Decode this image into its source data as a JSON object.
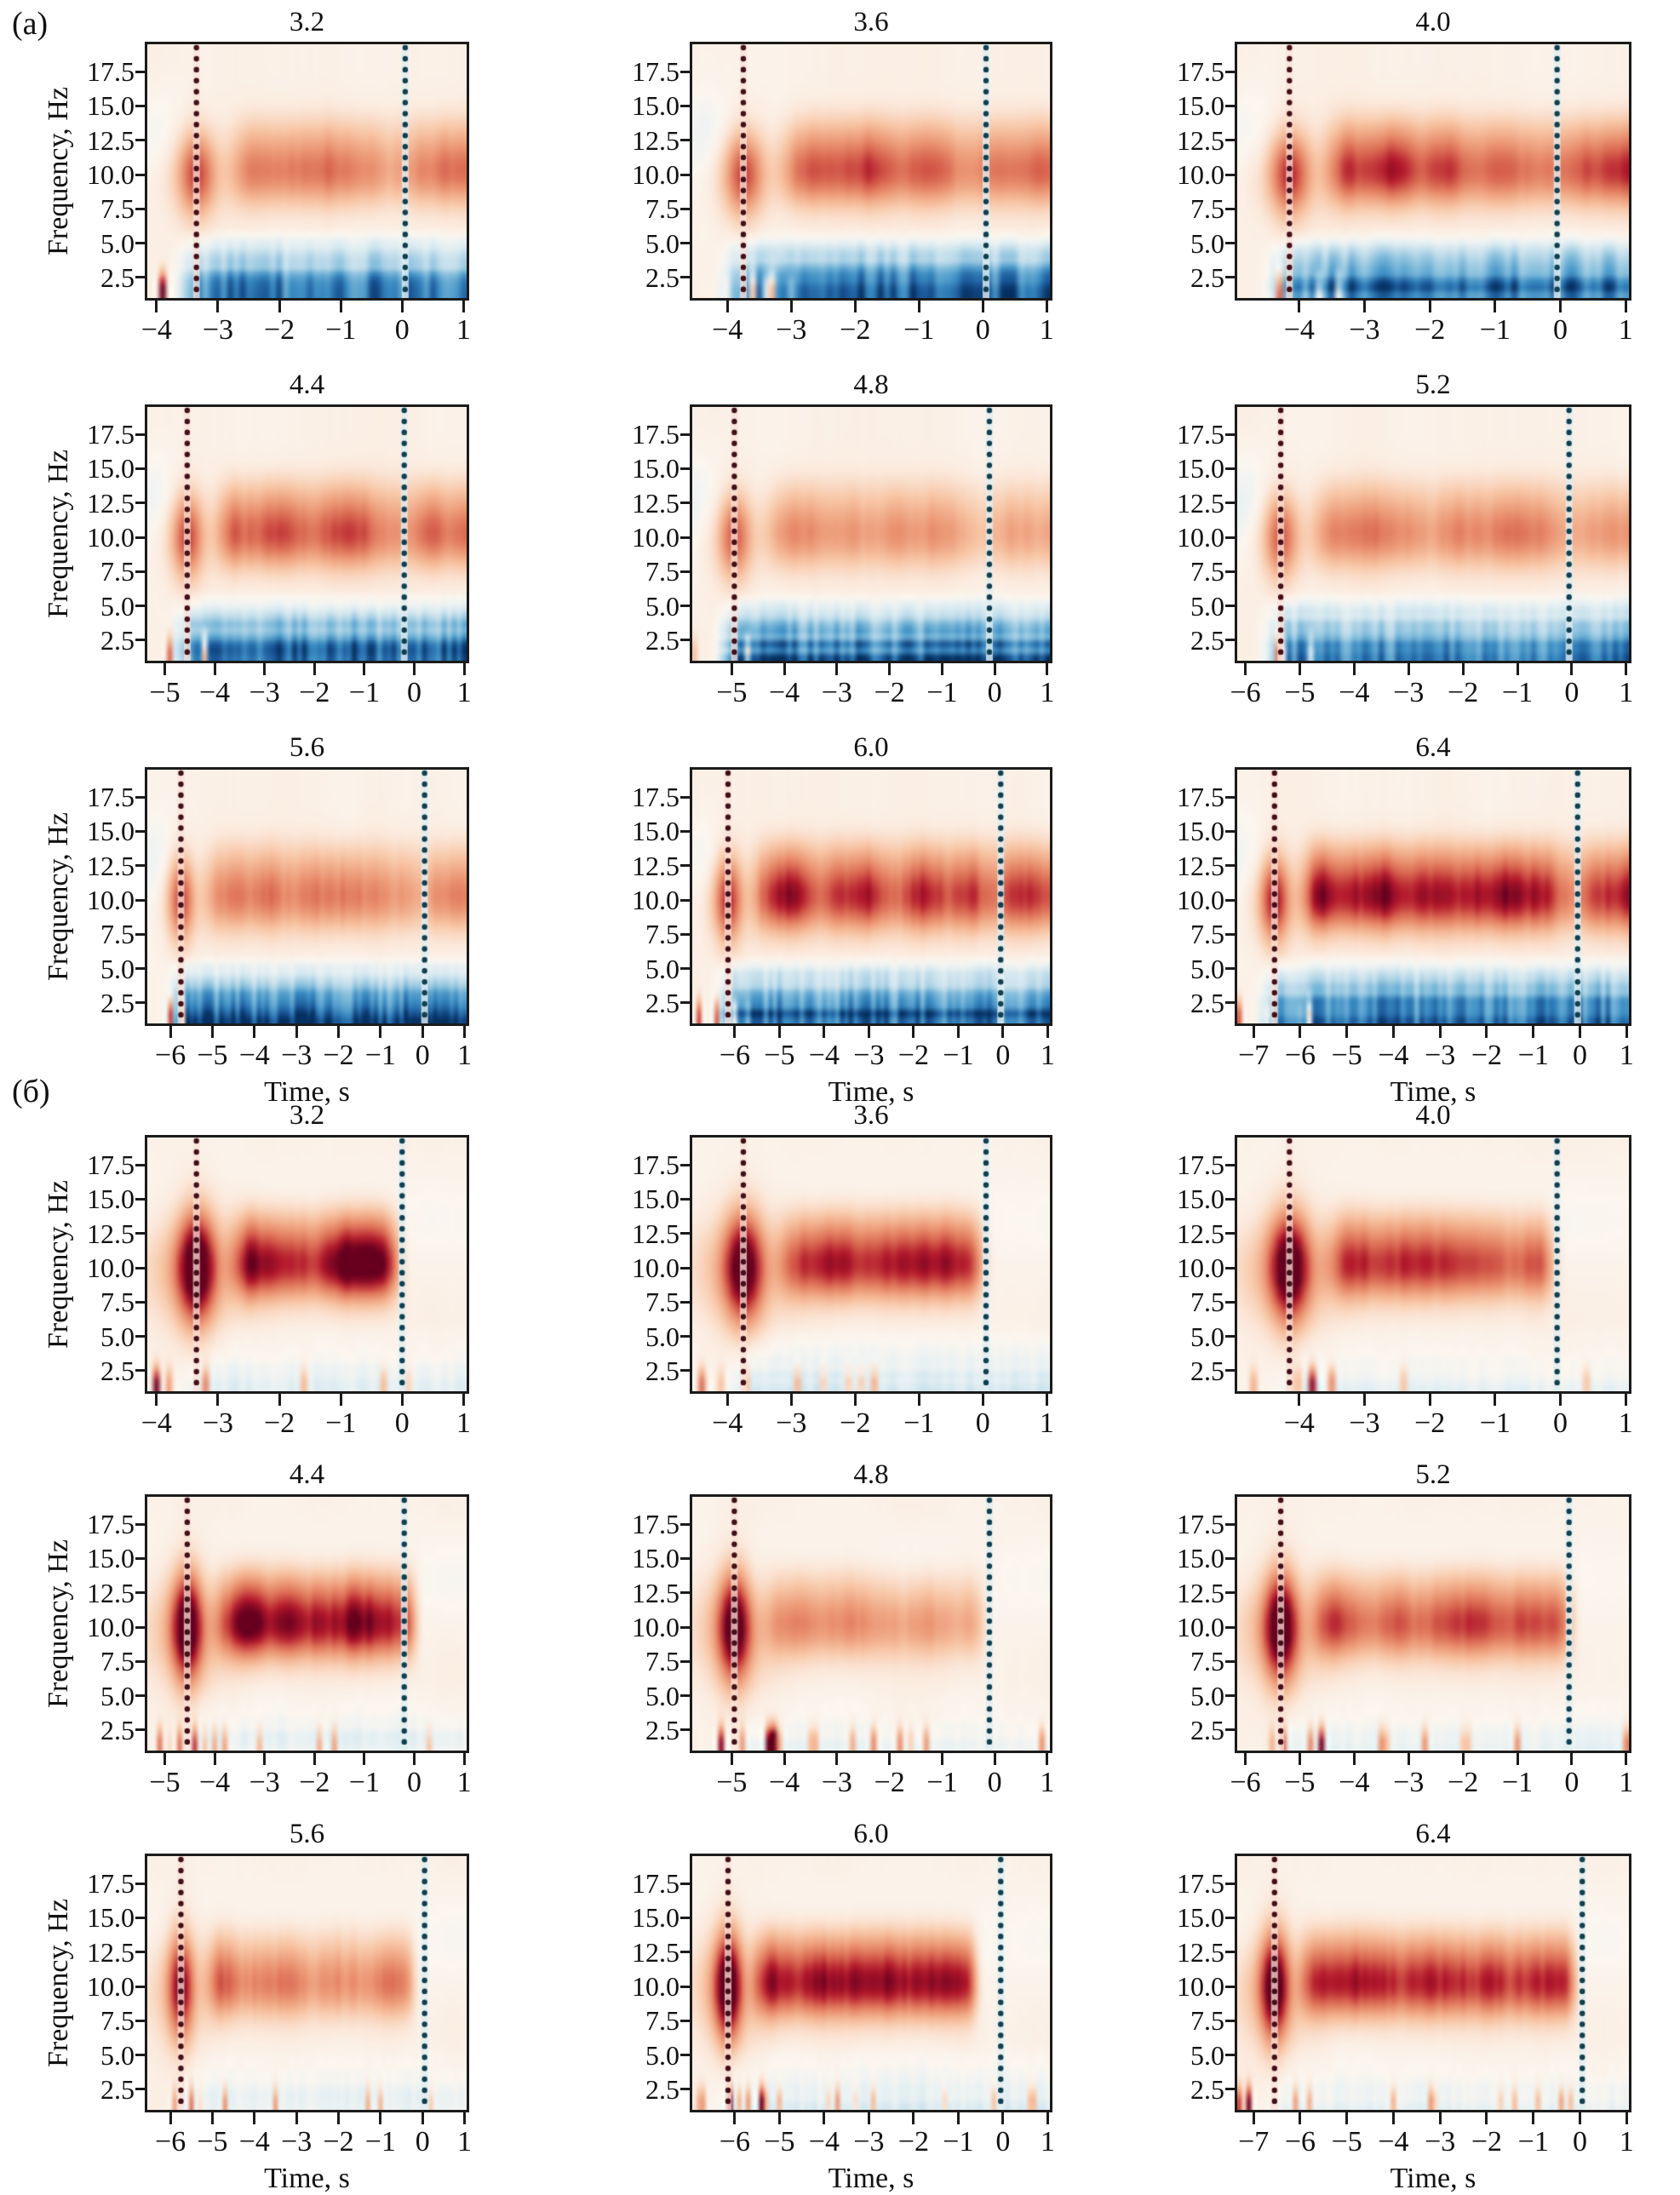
{
  "axes": {
    "ylabel": "Frequency, Hz",
    "xlabel": "Time, s",
    "ytick_labels": [
      "17.5",
      "15.0",
      "12.5",
      "10.0",
      "7.5",
      "5.0",
      "2.5"
    ],
    "ytick_values": [
      17.5,
      15.0,
      12.5,
      10.0,
      7.5,
      5.0,
      2.5
    ],
    "freq_range": [
      1.0,
      19.5
    ]
  },
  "colors": {
    "background": "#ffffff",
    "box_border": "#1b1b1b",
    "tick": "#1b1b1b",
    "stimulus_line_dot": "#431019",
    "stimulus_line_halo": "rgba(250,224,216,0.75)",
    "response_line_dot": "#114050",
    "response_line_halo": "rgba(224,238,241,0.8)",
    "colormap_stops": [
      [
        -1.0,
        "#053061"
      ],
      [
        -0.8,
        "#1b5899"
      ],
      [
        -0.6,
        "#3a8bc2"
      ],
      [
        -0.4,
        "#7ab8d9"
      ],
      [
        -0.2,
        "#c7e0ec"
      ],
      [
        -0.07,
        "#e8f1f3"
      ],
      [
        0.0,
        "#fbf6ef"
      ],
      [
        0.08,
        "#fbe9dc"
      ],
      [
        0.25,
        "#f7c4a3"
      ],
      [
        0.45,
        "#ea9270"
      ],
      [
        0.62,
        "#d6604d"
      ],
      [
        0.8,
        "#b2182b"
      ],
      [
        1.0,
        "#67001f"
      ]
    ]
  },
  "chart_data": {
    "type": "heatmap",
    "description": "Event-related spectral perturbation maps (red = power increase, blue = decrease) vs time and frequency; dark-red dotted line = stimulus onset, dark-teal dotted line = response near 0 s; subplot titles give delay duration in seconds",
    "panels": [
      {
        "label": "(a)",
        "key": "a",
        "subplots": [
          {
            "title": "3.2",
            "row": 0,
            "col": 0,
            "x_min": -4.15,
            "x_max": 1.05,
            "xtick_values": [
              -4,
              -3,
              -2,
              -1,
              0,
              1
            ],
            "xtick_labels": [
              "−4",
              "−3",
              "−2",
              "−1",
              "0",
              "1"
            ],
            "red_line": -3.35,
            "blue_line": 0.05,
            "heat": {
              "alpha_amp": 0.5,
              "onset_amp": 0.5,
              "low_blue_amp": 0.8,
              "band_end": null,
              "dip": 0.3
            }
          },
          {
            "title": "3.6",
            "row": 0,
            "col": 1,
            "x_min": -4.55,
            "x_max": 1.05,
            "xtick_values": [
              -4,
              -3,
              -2,
              -1,
              0,
              1
            ],
            "xtick_labels": [
              "−4",
              "−3",
              "−2",
              "−1",
              "0",
              "1"
            ],
            "red_line": -3.75,
            "blue_line": 0.05,
            "heat": {
              "alpha_amp": 0.62,
              "onset_amp": 0.5,
              "low_blue_amp": 0.95,
              "band_end": null,
              "dip": 0.3
            }
          },
          {
            "title": "4.0",
            "row": 0,
            "col": 2,
            "x_min": -4.95,
            "x_max": 1.05,
            "xtick_values": [
              -4,
              -3,
              -2,
              -1,
              0,
              1
            ],
            "xtick_labels": [
              "−4",
              "−3",
              "−2",
              "−1",
              "0",
              "1"
            ],
            "red_line": -4.15,
            "blue_line": -0.05,
            "heat": {
              "alpha_amp": 0.72,
              "onset_amp": 0.55,
              "low_blue_amp": 0.9,
              "band_end": null,
              "dip": 0.25
            }
          },
          {
            "title": "4.4",
            "row": 1,
            "col": 0,
            "x_min": -5.35,
            "x_max": 1.05,
            "xtick_values": [
              -5,
              -4,
              -3,
              -2,
              -1,
              0,
              1
            ],
            "xtick_labels": [
              "−5",
              "−4",
              "−3",
              "−2",
              "−1",
              "0",
              "1"
            ],
            "red_line": -4.55,
            "blue_line": -0.2,
            "heat": {
              "alpha_amp": 0.6,
              "onset_amp": 0.5,
              "low_blue_amp": 0.95,
              "band_end": null,
              "dip": 0.3
            }
          },
          {
            "title": "4.8",
            "row": 1,
            "col": 1,
            "x_min": -5.75,
            "x_max": 1.05,
            "xtick_values": [
              -5,
              -4,
              -3,
              -2,
              -1,
              0,
              1
            ],
            "xtick_labels": [
              "−5",
              "−4",
              "−3",
              "−2",
              "−1",
              "0",
              "1"
            ],
            "red_line": -4.95,
            "blue_line": -0.1,
            "heat": {
              "alpha_amp": 0.4,
              "onset_amp": 0.45,
              "low_blue_amp": 0.9,
              "band_end": null,
              "dip": 0.3
            }
          },
          {
            "title": "5.2",
            "row": 1,
            "col": 2,
            "x_min": -6.15,
            "x_max": 1.05,
            "xtick_values": [
              -6,
              -5,
              -4,
              -3,
              -2,
              -1,
              0,
              1
            ],
            "xtick_labels": [
              "−6",
              "−5",
              "−4",
              "−3",
              "−2",
              "−1",
              "0",
              "1"
            ],
            "red_line": -5.35,
            "blue_line": -0.05,
            "heat": {
              "alpha_amp": 0.46,
              "onset_amp": 0.45,
              "low_blue_amp": 0.85,
              "band_end": null,
              "dip": 0.3
            }
          },
          {
            "title": "5.6",
            "row": 2,
            "col": 0,
            "x_min": -6.55,
            "x_max": 1.05,
            "xtick_values": [
              -6,
              -5,
              -4,
              -3,
              -2,
              -1,
              0,
              1
            ],
            "xtick_labels": [
              "−6",
              "−5",
              "−4",
              "−3",
              "−2",
              "−1",
              "0",
              "1"
            ],
            "red_line": -5.75,
            "blue_line": 0.05,
            "heat": {
              "alpha_amp": 0.5,
              "onset_amp": 0.5,
              "low_blue_amp": 0.9,
              "band_end": null,
              "dip": 0.3
            }
          },
          {
            "title": "6.0",
            "row": 2,
            "col": 1,
            "x_min": -6.95,
            "x_max": 1.05,
            "xtick_values": [
              -6,
              -5,
              -4,
              -3,
              -2,
              -1,
              0,
              1
            ],
            "xtick_labels": [
              "−6",
              "−5",
              "−4",
              "−3",
              "−2",
              "−1",
              "0",
              "1"
            ],
            "red_line": -6.15,
            "blue_line": -0.05,
            "heat": {
              "alpha_amp": 0.75,
              "onset_amp": 0.55,
              "low_blue_amp": 0.95,
              "band_end": null,
              "dip": 0.3
            }
          },
          {
            "title": "6.4",
            "row": 2,
            "col": 2,
            "x_min": -7.35,
            "x_max": 1.05,
            "xtick_values": [
              -7,
              -6,
              -5,
              -4,
              -3,
              -2,
              -1,
              0,
              1
            ],
            "xtick_labels": [
              "−7",
              "−6",
              "−5",
              "−4",
              "−3",
              "−2",
              "−1",
              "0",
              "1"
            ],
            "red_line": -6.55,
            "blue_line": -0.05,
            "heat": {
              "alpha_amp": 0.8,
              "onset_amp": 0.6,
              "low_blue_amp": 0.95,
              "band_end": null,
              "dip": 0.3
            }
          }
        ]
      },
      {
        "label": "(б)",
        "key": "b",
        "subplots": [
          {
            "title": "3.2",
            "row": 0,
            "col": 0,
            "x_min": -4.15,
            "x_max": 1.05,
            "xtick_values": [
              -4,
              -3,
              -2,
              -1,
              0,
              1
            ],
            "xtick_labels": [
              "−4",
              "−3",
              "−2",
              "−1",
              "0",
              "1"
            ],
            "red_line": -3.35,
            "blue_line": 0.0,
            "heat": {
              "alpha_amp": 0.95,
              "onset_amp": 1.0,
              "low_blue_amp": 0.12,
              "band_end": -0.35,
              "dip": 0
            }
          },
          {
            "title": "3.6",
            "row": 0,
            "col": 1,
            "x_min": -4.55,
            "x_max": 1.05,
            "xtick_values": [
              -4,
              -3,
              -2,
              -1,
              0,
              1
            ],
            "xtick_labels": [
              "−4",
              "−3",
              "−2",
              "−1",
              "0",
              "1"
            ],
            "red_line": -3.75,
            "blue_line": 0.05,
            "heat": {
              "alpha_amp": 0.8,
              "onset_amp": 0.9,
              "low_blue_amp": 0.18,
              "band_end": -0.3,
              "dip": 0
            }
          },
          {
            "title": "4.0",
            "row": 0,
            "col": 2,
            "x_min": -4.95,
            "x_max": 1.05,
            "xtick_values": [
              -4,
              -3,
              -2,
              -1,
              0,
              1
            ],
            "xtick_labels": [
              "−4",
              "−3",
              "−2",
              "−1",
              "0",
              "1"
            ],
            "red_line": -4.15,
            "blue_line": -0.05,
            "heat": {
              "alpha_amp": 0.72,
              "onset_amp": 0.95,
              "low_blue_amp": 0.1,
              "band_end": -0.4,
              "dip": 0
            }
          },
          {
            "title": "4.4",
            "row": 1,
            "col": 0,
            "x_min": -5.35,
            "x_max": 1.05,
            "xtick_values": [
              -5,
              -4,
              -3,
              -2,
              -1,
              0,
              1
            ],
            "xtick_labels": [
              "−5",
              "−4",
              "−3",
              "−2",
              "−1",
              "0",
              "1"
            ],
            "red_line": -4.55,
            "blue_line": -0.2,
            "heat": {
              "alpha_amp": 1.0,
              "onset_amp": 0.95,
              "low_blue_amp": 0.12,
              "band_end": -0.3,
              "dip": 0
            }
          },
          {
            "title": "4.8",
            "row": 1,
            "col": 1,
            "x_min": -5.75,
            "x_max": 1.05,
            "xtick_values": [
              -5,
              -4,
              -3,
              -2,
              -1,
              0,
              1
            ],
            "xtick_labels": [
              "−5",
              "−4",
              "−3",
              "−2",
              "−1",
              "0",
              "1"
            ],
            "red_line": -4.95,
            "blue_line": -0.1,
            "heat": {
              "alpha_amp": 0.45,
              "onset_amp": 0.9,
              "low_blue_amp": 0.08,
              "band_end": -0.5,
              "dip": 0
            }
          },
          {
            "title": "5.2",
            "row": 1,
            "col": 2,
            "x_min": -6.15,
            "x_max": 1.05,
            "xtick_values": [
              -6,
              -5,
              -4,
              -3,
              -2,
              -1,
              0,
              1
            ],
            "xtick_labels": [
              "−6",
              "−5",
              "−4",
              "−3",
              "−2",
              "−1",
              "0",
              "1"
            ],
            "red_line": -5.35,
            "blue_line": -0.05,
            "heat": {
              "alpha_amp": 0.65,
              "onset_amp": 0.95,
              "low_blue_amp": 0.1,
              "band_end": -0.3,
              "dip": 0
            }
          },
          {
            "title": "5.6",
            "row": 2,
            "col": 0,
            "x_min": -6.55,
            "x_max": 1.05,
            "xtick_values": [
              -6,
              -5,
              -4,
              -3,
              -2,
              -1,
              0,
              1
            ],
            "xtick_labels": [
              "−6",
              "−5",
              "−4",
              "−3",
              "−2",
              "−1",
              "0",
              "1"
            ],
            "red_line": -5.75,
            "blue_line": 0.05,
            "heat": {
              "alpha_amp": 0.5,
              "onset_amp": 0.7,
              "low_blue_amp": 0.12,
              "band_end": -0.5,
              "dip": 0
            }
          },
          {
            "title": "6.0",
            "row": 2,
            "col": 1,
            "x_min": -6.95,
            "x_max": 1.05,
            "xtick_values": [
              -6,
              -5,
              -4,
              -3,
              -2,
              -1,
              0,
              1
            ],
            "xtick_labels": [
              "−6",
              "−5",
              "−4",
              "−3",
              "−2",
              "−1",
              "0",
              "1"
            ],
            "red_line": -6.15,
            "blue_line": -0.05,
            "heat": {
              "alpha_amp": 0.9,
              "onset_amp": 0.95,
              "low_blue_amp": 0.15,
              "band_end": -0.9,
              "dip": 0
            }
          },
          {
            "title": "6.4",
            "row": 2,
            "col": 2,
            "x_min": -7.35,
            "x_max": 1.05,
            "xtick_values": [
              -7,
              -6,
              -5,
              -4,
              -3,
              -2,
              -1,
              0,
              1
            ],
            "xtick_labels": [
              "−7",
              "−6",
              "−5",
              "−4",
              "−3",
              "−2",
              "−1",
              "0",
              "1"
            ],
            "red_line": -6.55,
            "blue_line": 0.05,
            "heat": {
              "alpha_amp": 0.75,
              "onset_amp": 0.9,
              "low_blue_amp": 0.1,
              "band_end": -0.4,
              "dip": 0
            }
          }
        ]
      }
    ]
  }
}
